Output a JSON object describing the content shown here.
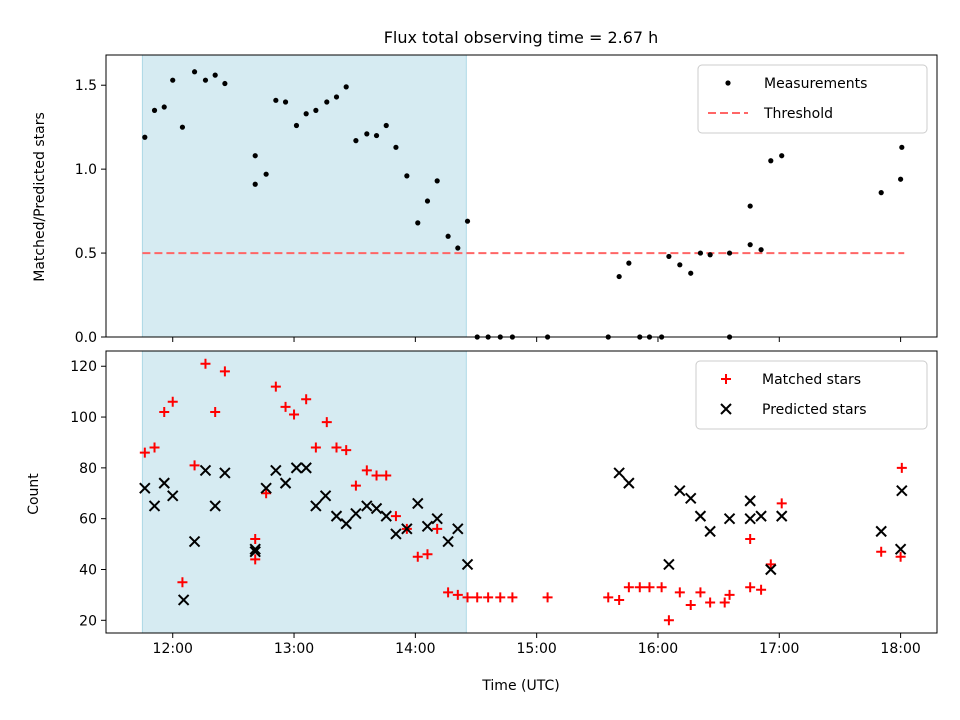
{
  "title": "Flux total observing time = 2.67 h",
  "colors": {
    "shade": "#add8e6",
    "measurement": "#000000",
    "threshold": "#ff6666",
    "matched": "#ff0000",
    "predicted": "#000000"
  },
  "chart_data": [
    {
      "type": "scatter",
      "ylabel": "Matched/Predicted stars",
      "xlim": [
        11.45,
        18.3
      ],
      "ylim": [
        0,
        1.68
      ],
      "y_ticks": [
        0,
        0.5,
        1.0,
        1.5
      ],
      "y_tick_labels": [
        "0.0",
        "0.5",
        "1.0",
        "1.5"
      ],
      "shaded_span": [
        11.75,
        14.42
      ],
      "legend": {
        "placement": "top-right",
        "entries": [
          "Measurements",
          "Threshold"
        ]
      },
      "threshold": {
        "name": "Threshold",
        "y": 0.5,
        "x_range": [
          11.75,
          18.03
        ]
      },
      "series": [
        {
          "name": "Measurements",
          "x": [
            11.77,
            11.85,
            11.93,
            12.0,
            12.08,
            12.18,
            12.27,
            12.35,
            12.43,
            12.68,
            12.68,
            12.77,
            12.85,
            12.93,
            13.02,
            13.1,
            13.18,
            13.27,
            13.35,
            13.43,
            13.51,
            13.6,
            13.68,
            13.76,
            13.84,
            13.93,
            14.02,
            14.1,
            14.18,
            14.27,
            14.35,
            14.43,
            14.51,
            14.6,
            14.7,
            14.8,
            15.09,
            15.59,
            15.68,
            15.76,
            15.85,
            15.93,
            16.03,
            16.09,
            16.18,
            16.27,
            16.35,
            16.43,
            16.59,
            16.59,
            16.76,
            16.76,
            16.85,
            16.93,
            17.02,
            17.84,
            18.0,
            18.01
          ],
          "y": [
            1.19,
            1.35,
            1.37,
            1.53,
            1.25,
            1.58,
            1.53,
            1.56,
            1.51,
            1.08,
            0.91,
            0.97,
            1.41,
            1.4,
            1.26,
            1.33,
            1.35,
            1.4,
            1.43,
            1.49,
            1.17,
            1.21,
            1.2,
            1.26,
            1.13,
            0.96,
            0.68,
            0.81,
            0.93,
            0.6,
            0.53,
            0.69,
            0.0,
            0.0,
            0.0,
            0.0,
            0.0,
            0.0,
            0.36,
            0.44,
            0.0,
            0.0,
            0.0,
            0.48,
            0.43,
            0.38,
            0.5,
            0.49,
            0.0,
            0.5,
            0.55,
            0.78,
            0.52,
            1.05,
            1.08,
            0.86,
            0.94,
            1.13
          ]
        }
      ]
    },
    {
      "type": "scatter",
      "xlabel": "Time (UTC)",
      "ylabel": "Count",
      "xlim": [
        11.45,
        18.3
      ],
      "ylim": [
        15,
        126
      ],
      "x_ticks": [
        12,
        13,
        14,
        15,
        16,
        17,
        18
      ],
      "x_tick_labels": [
        "12:00",
        "13:00",
        "14:00",
        "15:00",
        "16:00",
        "17:00",
        "18:00"
      ],
      "y_ticks": [
        20,
        40,
        60,
        80,
        100,
        120
      ],
      "y_tick_labels": [
        "20",
        "40",
        "60",
        "80",
        "100",
        "120"
      ],
      "shaded_span": [
        11.75,
        14.42
      ],
      "legend": {
        "placement": "top-right",
        "entries": [
          "Matched stars",
          "Predicted stars"
        ]
      },
      "series": [
        {
          "name": "Matched stars",
          "marker": "+",
          "x": [
            11.77,
            11.85,
            11.93,
            12.0,
            12.08,
            12.18,
            12.27,
            12.35,
            12.43,
            12.68,
            12.68,
            12.77,
            12.85,
            12.93,
            13.0,
            13.1,
            13.18,
            13.27,
            13.35,
            13.43,
            13.51,
            13.6,
            13.68,
            13.76,
            13.84,
            13.93,
            14.02,
            14.1,
            14.18,
            14.27,
            14.35,
            14.43,
            14.51,
            14.6,
            14.7,
            14.8,
            15.09,
            15.59,
            15.68,
            15.76,
            15.85,
            15.93,
            16.03,
            16.09,
            16.18,
            16.27,
            16.35,
            16.43,
            16.55,
            16.59,
            16.76,
            16.76,
            16.85,
            16.93,
            17.02,
            17.84,
            18.0,
            18.01
          ],
          "y": [
            86,
            88,
            102,
            106,
            35,
            81,
            121,
            102,
            118,
            52,
            44,
            70,
            112,
            104,
            101,
            107,
            88,
            98,
            88,
            87,
            73,
            79,
            77,
            77,
            61,
            56,
            45,
            46,
            56,
            31,
            30,
            29,
            29,
            29,
            29,
            29,
            29,
            29,
            28,
            33,
            33,
            33,
            33,
            20,
            31,
            26,
            31,
            27,
            27,
            30,
            33,
            52,
            32,
            42,
            66,
            47,
            45,
            80
          ]
        },
        {
          "name": "Predicted stars",
          "marker": "x",
          "x": [
            11.77,
            11.85,
            11.93,
            12.0,
            12.09,
            12.18,
            12.27,
            12.35,
            12.43,
            12.68,
            12.68,
            12.77,
            12.85,
            12.93,
            13.02,
            13.1,
            13.18,
            13.26,
            13.35,
            13.43,
            13.51,
            13.6,
            13.68,
            13.76,
            13.84,
            13.93,
            14.02,
            14.1,
            14.18,
            14.27,
            14.35,
            14.43,
            15.68,
            15.76,
            16.09,
            16.18,
            16.27,
            16.35,
            16.43,
            16.59,
            16.76,
            16.76,
            16.85,
            16.93,
            17.02,
            17.84,
            18.0,
            18.01
          ],
          "y": [
            72,
            65,
            74,
            69,
            28,
            51,
            79,
            65,
            78,
            48,
            47,
            72,
            79,
            74,
            80,
            80,
            65,
            69,
            61,
            58,
            62,
            65,
            64,
            61,
            54,
            56,
            66,
            57,
            60,
            51,
            56,
            42,
            78,
            74,
            42,
            71,
            68,
            61,
            55,
            60,
            60,
            67,
            61,
            40,
            61,
            55,
            48,
            71
          ]
        }
      ]
    }
  ]
}
